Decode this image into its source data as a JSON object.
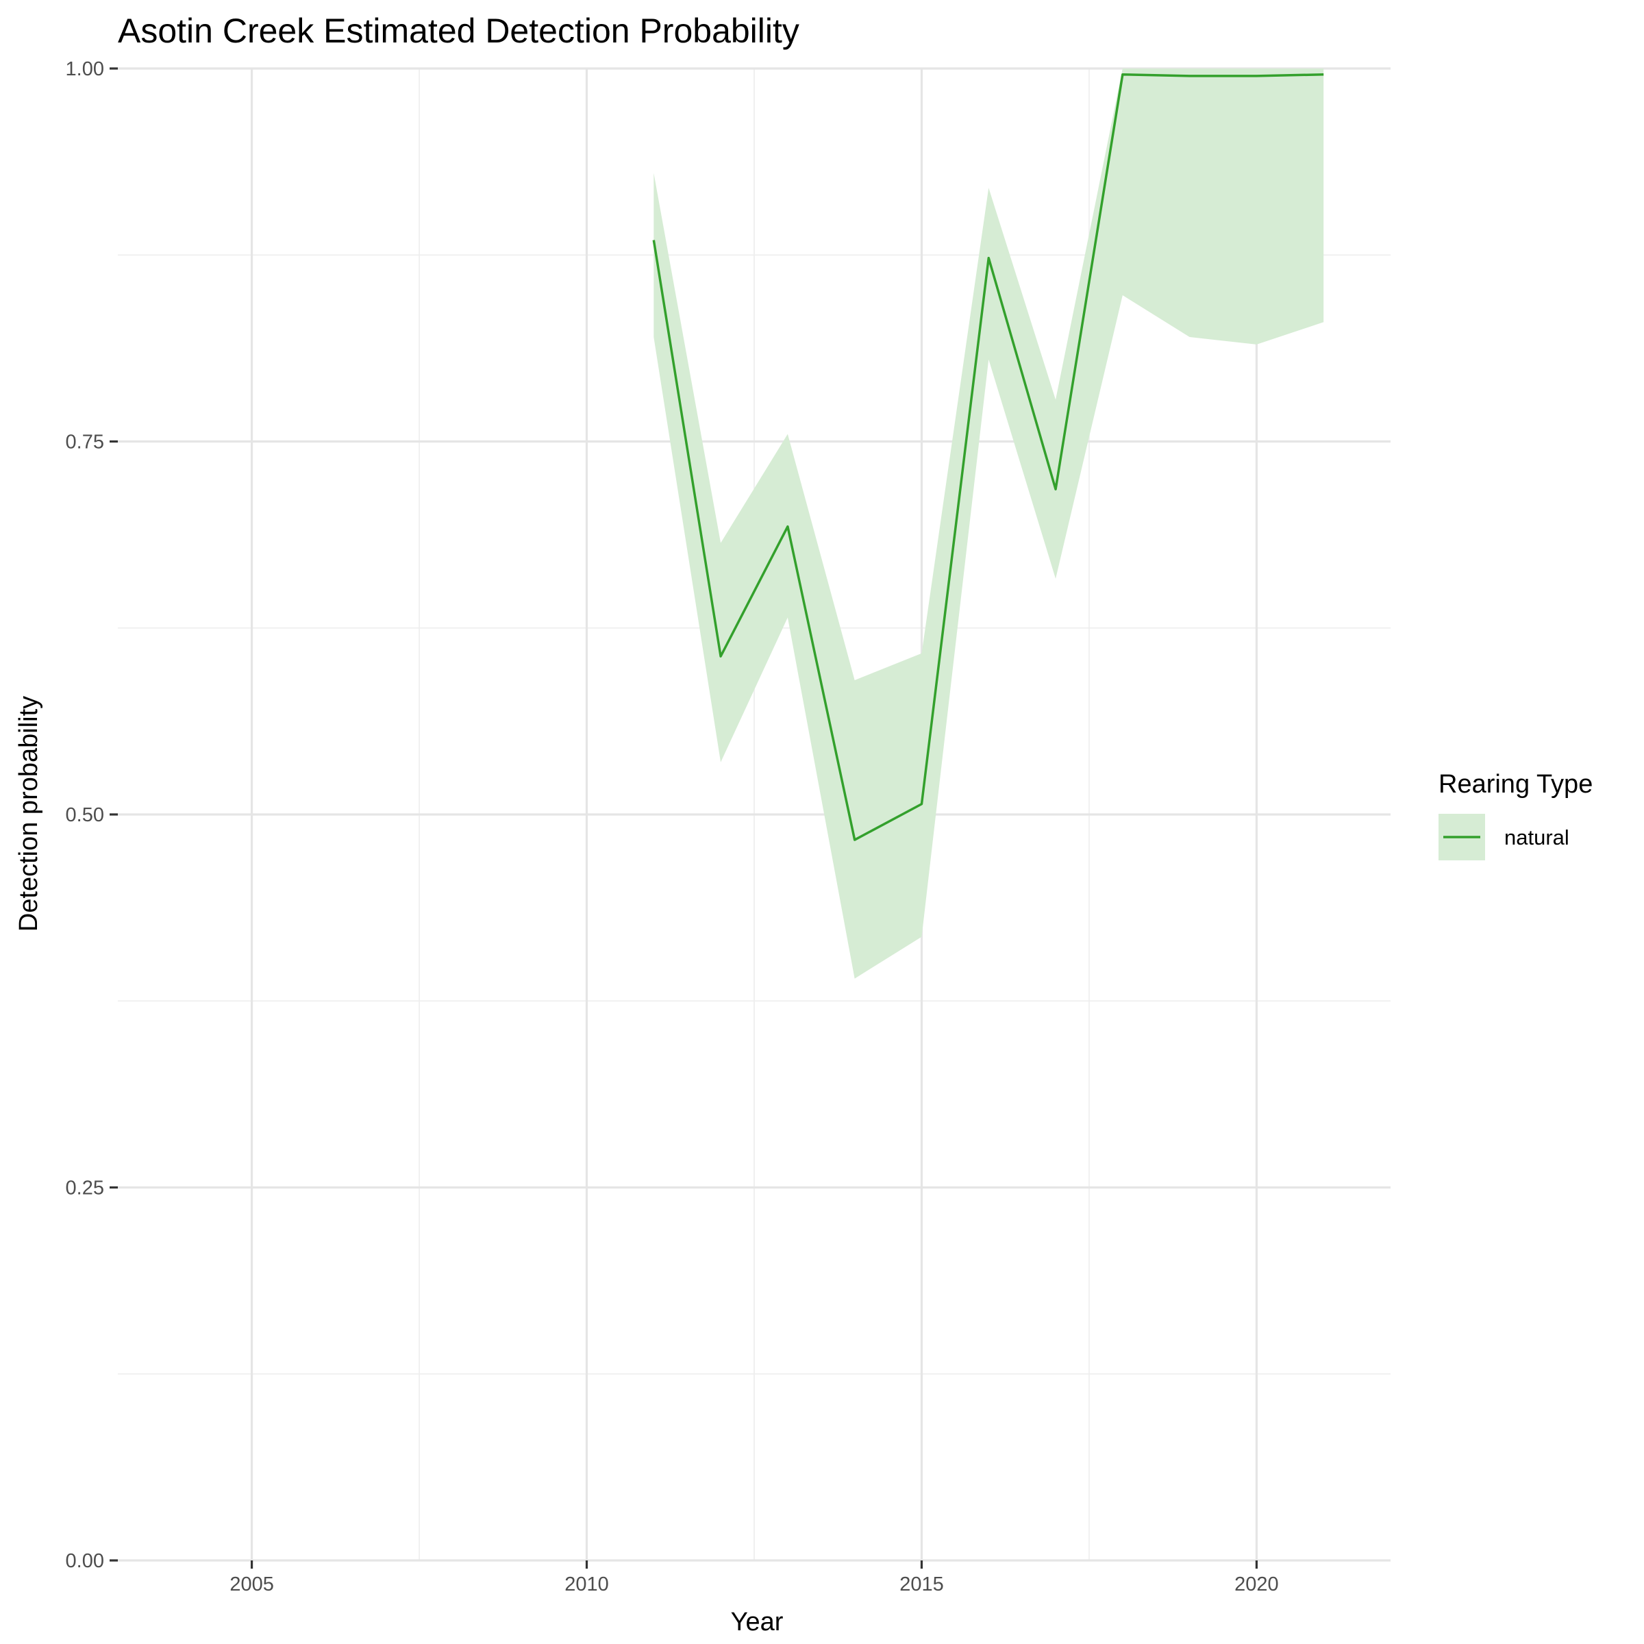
{
  "chart_data": {
    "type": "line",
    "title": "Asotin Creek Estimated Detection Probability",
    "xlabel": "Year",
    "ylabel": "Detection probability",
    "xlim": [
      2003,
      2022
    ],
    "ylim": [
      0,
      1
    ],
    "x_ticks": [
      2005,
      2010,
      2015,
      2020
    ],
    "x_tick_labels": [
      "2005",
      "2010",
      "2015",
      "2020"
    ],
    "y_ticks": [
      0,
      0.25,
      0.5,
      0.75,
      1
    ],
    "y_tick_labels": [
      "0.00",
      "0.25",
      "0.50",
      "0.75",
      "1.00"
    ],
    "grid": true,
    "legend": {
      "title": "Rearing Type",
      "position": "right"
    },
    "series": [
      {
        "name": "natural",
        "color": "#33a02c",
        "ribbon_color": "#d6ecd4",
        "x": [
          2011,
          2012,
          2013,
          2014,
          2015,
          2016,
          2017,
          2018,
          2019,
          2020,
          2021
        ],
        "y": [
          0.885,
          0.606,
          0.693,
          0.483,
          0.507,
          0.873,
          0.718,
          0.996,
          0.995,
          0.995,
          0.996
        ],
        "lower": [
          0.82,
          0.535,
          0.632,
          0.39,
          0.418,
          0.805,
          0.658,
          0.848,
          0.82,
          0.815,
          0.83
        ],
        "upper": [
          0.93,
          0.682,
          0.755,
          0.59,
          0.608,
          0.92,
          0.778,
          1.0,
          1.0,
          1.0,
          1.0
        ]
      }
    ]
  }
}
